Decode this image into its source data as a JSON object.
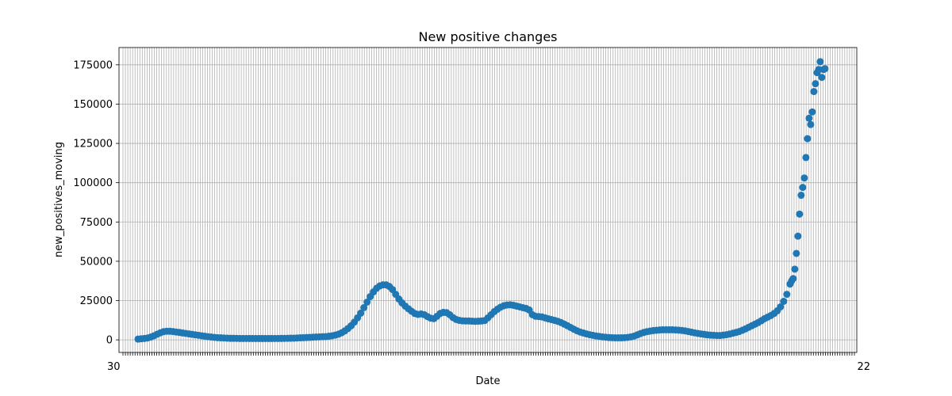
{
  "chart_data": {
    "type": "scatter",
    "title": "New positive changes",
    "xlabel": "Date",
    "ylabel": "new_positives_moving",
    "ylim": [
      -8000,
      186000
    ],
    "yticks": [
      0,
      25000,
      50000,
      75000,
      100000,
      125000,
      150000,
      175000
    ],
    "grid": true,
    "marker_color": "#1f77b4",
    "x_tick_start_label": "30",
    "x_tick_end_label": "22",
    "x_tick_count": 304,
    "series": [
      {
        "points": [
          [
            0,
            500
          ],
          [
            2,
            700
          ],
          [
            4,
            900
          ],
          [
            6,
            1200
          ],
          [
            8,
            1800
          ],
          [
            10,
            2600
          ],
          [
            12,
            3600
          ],
          [
            14,
            4500
          ],
          [
            16,
            5200
          ],
          [
            18,
            5500
          ],
          [
            20,
            5500
          ],
          [
            22,
            5300
          ],
          [
            24,
            5000
          ],
          [
            26,
            4700
          ],
          [
            28,
            4400
          ],
          [
            30,
            4100
          ],
          [
            32,
            3800
          ],
          [
            34,
            3500
          ],
          [
            36,
            3200
          ],
          [
            38,
            2900
          ],
          [
            40,
            2600
          ],
          [
            42,
            2300
          ],
          [
            44,
            2000
          ],
          [
            46,
            1800
          ],
          [
            48,
            1600
          ],
          [
            50,
            1400
          ],
          [
            52,
            1300
          ],
          [
            54,
            1200
          ],
          [
            56,
            1100
          ],
          [
            58,
            1000
          ],
          [
            60,
            1000
          ],
          [
            62,
            950
          ],
          [
            64,
            900
          ],
          [
            66,
            900
          ],
          [
            68,
            900
          ],
          [
            70,
            900
          ],
          [
            72,
            880
          ],
          [
            74,
            870
          ],
          [
            76,
            860
          ],
          [
            78,
            850
          ],
          [
            80,
            850
          ],
          [
            82,
            860
          ],
          [
            84,
            870
          ],
          [
            86,
            880
          ],
          [
            88,
            900
          ],
          [
            90,
            920
          ],
          [
            92,
            950
          ],
          [
            94,
            1000
          ],
          [
            96,
            1050
          ],
          [
            98,
            1100
          ],
          [
            100,
            1200
          ],
          [
            102,
            1300
          ],
          [
            104,
            1400
          ],
          [
            106,
            1500
          ],
          [
            108,
            1600
          ],
          [
            110,
            1700
          ],
          [
            112,
            1800
          ],
          [
            114,
            1900
          ],
          [
            116,
            2000
          ],
          [
            118,
            2100
          ],
          [
            120,
            2300
          ],
          [
            122,
            2600
          ],
          [
            124,
            3000
          ],
          [
            126,
            3600
          ],
          [
            128,
            4500
          ],
          [
            130,
            5700
          ],
          [
            132,
            7200
          ],
          [
            134,
            9000
          ],
          [
            136,
            11300
          ],
          [
            138,
            14000
          ],
          [
            140,
            17000
          ],
          [
            142,
            20500
          ],
          [
            144,
            24000
          ],
          [
            146,
            27500
          ],
          [
            148,
            30500
          ],
          [
            150,
            32800
          ],
          [
            152,
            34300
          ],
          [
            154,
            35000
          ],
          [
            156,
            35000
          ],
          [
            158,
            34000
          ],
          [
            160,
            32000
          ],
          [
            162,
            29000
          ],
          [
            164,
            26000
          ],
          [
            166,
            23500
          ],
          [
            168,
            21500
          ],
          [
            170,
            19800
          ],
          [
            172,
            18200
          ],
          [
            174,
            16800
          ],
          [
            176,
            16200
          ],
          [
            178,
            16500
          ],
          [
            180,
            16000
          ],
          [
            182,
            14800
          ],
          [
            184,
            13800
          ],
          [
            186,
            13500
          ],
          [
            188,
            15000
          ],
          [
            190,
            16800
          ],
          [
            192,
            17500
          ],
          [
            194,
            17300
          ],
          [
            196,
            16000
          ],
          [
            198,
            14200
          ],
          [
            200,
            13000
          ],
          [
            202,
            12400
          ],
          [
            204,
            12100
          ],
          [
            206,
            12000
          ],
          [
            208,
            12000
          ],
          [
            210,
            11900
          ],
          [
            212,
            11800
          ],
          [
            214,
            11900
          ],
          [
            216,
            12000
          ],
          [
            218,
            12300
          ],
          [
            220,
            14000
          ],
          [
            222,
            16000
          ],
          [
            224,
            18000
          ],
          [
            226,
            19500
          ],
          [
            228,
            20800
          ],
          [
            230,
            21700
          ],
          [
            232,
            22200
          ],
          [
            234,
            22300
          ],
          [
            236,
            22000
          ],
          [
            238,
            21500
          ],
          [
            240,
            21000
          ],
          [
            242,
            20500
          ],
          [
            244,
            20000
          ],
          [
            246,
            19000
          ],
          [
            248,
            16000
          ],
          [
            250,
            15000
          ],
          [
            252,
            14800
          ],
          [
            254,
            14600
          ],
          [
            256,
            14000
          ],
          [
            258,
            13400
          ],
          [
            260,
            12900
          ],
          [
            262,
            12400
          ],
          [
            264,
            11800
          ],
          [
            266,
            11000
          ],
          [
            268,
            10000
          ],
          [
            270,
            9000
          ],
          [
            272,
            7900
          ],
          [
            274,
            6800
          ],
          [
            276,
            5800
          ],
          [
            278,
            5000
          ],
          [
            280,
            4400
          ],
          [
            282,
            3800
          ],
          [
            284,
            3300
          ],
          [
            286,
            2900
          ],
          [
            288,
            2500
          ],
          [
            290,
            2200
          ],
          [
            292,
            1900
          ],
          [
            294,
            1700
          ],
          [
            296,
            1500
          ],
          [
            298,
            1400
          ],
          [
            300,
            1300
          ],
          [
            302,
            1300
          ],
          [
            304,
            1300
          ],
          [
            306,
            1400
          ],
          [
            308,
            1600
          ],
          [
            310,
            1900
          ],
          [
            312,
            2400
          ],
          [
            314,
            3200
          ],
          [
            316,
            4000
          ],
          [
            318,
            4700
          ],
          [
            320,
            5200
          ],
          [
            322,
            5600
          ],
          [
            324,
            5900
          ],
          [
            326,
            6100
          ],
          [
            328,
            6300
          ],
          [
            330,
            6400
          ],
          [
            332,
            6400
          ],
          [
            334,
            6400
          ],
          [
            336,
            6400
          ],
          [
            338,
            6300
          ],
          [
            340,
            6200
          ],
          [
            342,
            6000
          ],
          [
            344,
            5700
          ],
          [
            346,
            5300
          ],
          [
            348,
            4900
          ],
          [
            350,
            4500
          ],
          [
            352,
            4100
          ],
          [
            354,
            3800
          ],
          [
            356,
            3500
          ],
          [
            358,
            3200
          ],
          [
            360,
            3000
          ],
          [
            362,
            2900
          ],
          [
            364,
            2800
          ],
          [
            366,
            2800
          ],
          [
            368,
            3000
          ],
          [
            370,
            3300
          ],
          [
            372,
            3700
          ],
          [
            374,
            4200
          ],
          [
            376,
            4700
          ],
          [
            378,
            5300
          ],
          [
            380,
            6100
          ],
          [
            382,
            7000
          ],
          [
            384,
            8000
          ],
          [
            386,
            9000
          ],
          [
            388,
            10000
          ],
          [
            390,
            11000
          ],
          [
            392,
            12200
          ],
          [
            394,
            13500
          ],
          [
            396,
            14500
          ],
          [
            398,
            15500
          ],
          [
            400,
            16800
          ],
          [
            402,
            18500
          ],
          [
            404,
            21000
          ],
          [
            406,
            24500
          ],
          [
            408,
            29000
          ],
          [
            410,
            35500
          ],
          [
            411,
            37500
          ],
          [
            412,
            39000
          ],
          [
            413,
            45000
          ],
          [
            414,
            55000
          ],
          [
            415,
            66000
          ],
          [
            416,
            80000
          ],
          [
            417,
            92000
          ],
          [
            418,
            97000
          ],
          [
            419,
            103000
          ],
          [
            420,
            116000
          ],
          [
            421,
            128000
          ],
          [
            422,
            141000
          ],
          [
            423,
            137000
          ],
          [
            424,
            145000
          ],
          [
            425,
            158000
          ],
          [
            426,
            163000
          ],
          [
            427,
            170000
          ],
          [
            428,
            172000
          ],
          [
            429,
            177000
          ],
          [
            430,
            167000
          ],
          [
            431,
            172000
          ],
          [
            432,
            172500
          ]
        ]
      }
    ],
    "xlim": [
      -12,
      452
    ]
  }
}
